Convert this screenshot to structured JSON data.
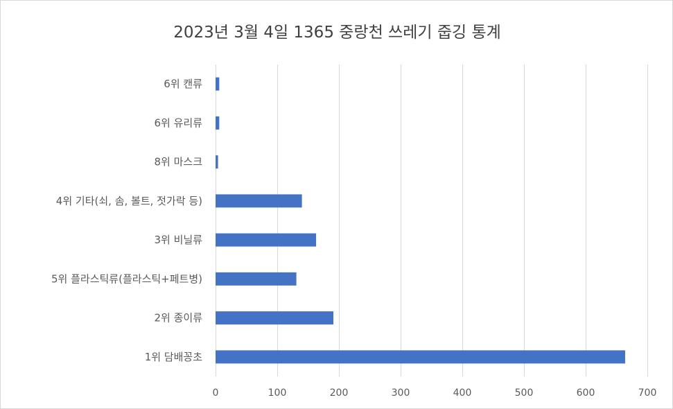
{
  "chart_data": {
    "type": "bar",
    "orientation": "horizontal",
    "title": "2023년 3월 4일 1365 중랑천 쓰레기 줍깅 통계",
    "categories": [
      "6위 캔류",
      "6위 유리류",
      "8위 마스크",
      "4위 기타(쇠, 솜, 볼트, 젓가락 등)",
      "3위 비닐류",
      "5위 플라스틱류(플라스틱+페트병)",
      "2위 종이류",
      "1위 담배꽁초"
    ],
    "values": [
      6,
      6,
      4,
      140,
      163,
      131,
      191,
      664
    ],
    "xlim": [
      0,
      700
    ],
    "xticks": [
      0,
      100,
      200,
      300,
      400,
      500,
      600,
      700
    ],
    "xlabel": "",
    "ylabel": "",
    "grid": true,
    "legend": "none",
    "bar_color": "#4472c4",
    "grid_color": "#d9d9d9",
    "text_color": "#595959"
  }
}
